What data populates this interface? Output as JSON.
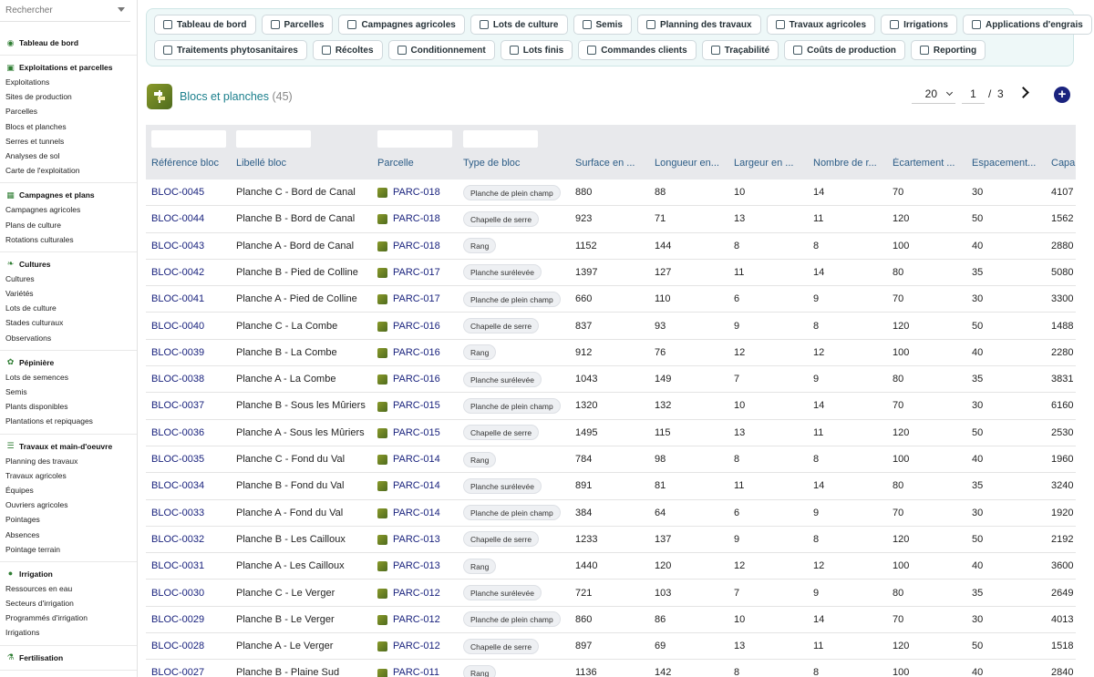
{
  "search": {
    "placeholder": "Rechercher"
  },
  "sidebar": {
    "sections": [
      {
        "title": "Tableau de bord",
        "icon": "dashboard-icon",
        "items": []
      },
      {
        "title": "Exploitations et parcelles",
        "icon": "field-icon",
        "items": [
          "Exploitations",
          "Sites de production",
          "Parcelles",
          "Blocs et planches",
          "Serres et tunnels",
          "Analyses de sol",
          "Carte de l'exploitation"
        ]
      },
      {
        "title": "Campagnes et plans",
        "icon": "calendar-icon",
        "items": [
          "Campagnes agricoles",
          "Plans de culture",
          "Rotations culturales"
        ]
      },
      {
        "title": "Cultures",
        "icon": "leaf-icon",
        "items": [
          "Cultures",
          "Variétés",
          "Lots de culture",
          "Stades culturaux",
          "Observations"
        ]
      },
      {
        "title": "Pépinière",
        "icon": "seedling-icon",
        "items": [
          "Lots de semences",
          "Semis",
          "Plants disponibles",
          "Plantations et repiquages"
        ]
      },
      {
        "title": "Travaux et main-d'oeuvre",
        "icon": "list-icon",
        "items": [
          "Planning des travaux",
          "Travaux agricoles",
          "Équipes",
          "Ouvriers agricoles",
          "Pointages",
          "Absences",
          "Pointage terrain"
        ]
      },
      {
        "title": "Irrigation",
        "icon": "drop-icon",
        "items": [
          "Ressources en eau",
          "Secteurs d'irrigation",
          "Programmés d'irrigation",
          "Irrigations"
        ]
      },
      {
        "title": "Fertilisation",
        "icon": "fertilizer-icon",
        "items": []
      }
    ]
  },
  "toolbar": {
    "row1": [
      {
        "label": "Tableau de bord",
        "icon": "gauge-icon"
      },
      {
        "label": "Parcelles",
        "icon": "frame-icon"
      },
      {
        "label": "Campagnes agricoles",
        "icon": "calendar-icon"
      },
      {
        "label": "Lots de culture",
        "icon": "sprout-icon"
      },
      {
        "label": "Semis",
        "icon": "seed-icon"
      },
      {
        "label": "Planning des travaux",
        "icon": "schedule-icon"
      },
      {
        "label": "Travaux agricoles",
        "icon": "list-icon"
      },
      {
        "label": "Irrigations",
        "icon": "drop-icon"
      },
      {
        "label": "Applications d'engrais",
        "icon": "fertilizer-icon"
      }
    ],
    "row2": [
      {
        "label": "Traitements phytosanitaires",
        "icon": "spray-icon"
      },
      {
        "label": "Récoltes",
        "icon": "basket-icon"
      },
      {
        "label": "Conditionnement",
        "icon": "box-icon"
      },
      {
        "label": "Lots finis",
        "icon": "pallet-icon"
      },
      {
        "label": "Commandes clients",
        "icon": "order-icon"
      },
      {
        "label": "Traçabilité",
        "icon": "barcode-icon"
      },
      {
        "label": "Coûts de production",
        "icon": "money-icon"
      },
      {
        "label": "Reporting",
        "icon": "chart-icon"
      }
    ]
  },
  "page": {
    "title": "Blocs et planches",
    "count": "(45)"
  },
  "pager": {
    "page_size": "20",
    "current": "1",
    "separator": "/",
    "total": "3"
  },
  "table": {
    "columns": [
      "Référence bloc",
      "Libellé bloc",
      "Parcelle",
      "Type de bloc",
      "Surface en ...",
      "Longueur en...",
      "Largeur en ...",
      "Nombre de r...",
      "Écartement ...",
      "Espacement...",
      "Capa"
    ],
    "rows": [
      [
        "BLOC-0045",
        "Planche C - Bord de Canal",
        "PARC-018",
        "Planche de plein champ",
        "880",
        "88",
        "10",
        "14",
        "70",
        "30",
        "4107"
      ],
      [
        "BLOC-0044",
        "Planche B - Bord de Canal",
        "PARC-018",
        "Chapelle de serre",
        "923",
        "71",
        "13",
        "11",
        "120",
        "50",
        "1562"
      ],
      [
        "BLOC-0043",
        "Planche A - Bord de Canal",
        "PARC-018",
        "Rang",
        "1152",
        "144",
        "8",
        "8",
        "100",
        "40",
        "2880"
      ],
      [
        "BLOC-0042",
        "Planche B - Pied de Colline",
        "PARC-017",
        "Planche surélevée",
        "1397",
        "127",
        "11",
        "14",
        "80",
        "35",
        "5080"
      ],
      [
        "BLOC-0041",
        "Planche A - Pied de Colline",
        "PARC-017",
        "Planche de plein champ",
        "660",
        "110",
        "6",
        "9",
        "70",
        "30",
        "3300"
      ],
      [
        "BLOC-0040",
        "Planche C - La Combe",
        "PARC-016",
        "Chapelle de serre",
        "837",
        "93",
        "9",
        "8",
        "120",
        "50",
        "1488"
      ],
      [
        "BLOC-0039",
        "Planche B - La Combe",
        "PARC-016",
        "Rang",
        "912",
        "76",
        "12",
        "12",
        "100",
        "40",
        "2280"
      ],
      [
        "BLOC-0038",
        "Planche A - La Combe",
        "PARC-016",
        "Planche surélevée",
        "1043",
        "149",
        "7",
        "9",
        "80",
        "35",
        "3831"
      ],
      [
        "BLOC-0037",
        "Planche B - Sous les Mûriers",
        "PARC-015",
        "Planche de plein champ",
        "1320",
        "132",
        "10",
        "14",
        "70",
        "30",
        "6160"
      ],
      [
        "BLOC-0036",
        "Planche A - Sous les Mûriers",
        "PARC-015",
        "Chapelle de serre",
        "1495",
        "115",
        "13",
        "11",
        "120",
        "50",
        "2530"
      ],
      [
        "BLOC-0035",
        "Planche C - Fond du Val",
        "PARC-014",
        "Rang",
        "784",
        "98",
        "8",
        "8",
        "100",
        "40",
        "1960"
      ],
      [
        "BLOC-0034",
        "Planche B - Fond du Val",
        "PARC-014",
        "Planche surélevée",
        "891",
        "81",
        "11",
        "14",
        "80",
        "35",
        "3240"
      ],
      [
        "BLOC-0033",
        "Planche A - Fond du Val",
        "PARC-014",
        "Planche de plein champ",
        "384",
        "64",
        "6",
        "9",
        "70",
        "30",
        "1920"
      ],
      [
        "BLOC-0032",
        "Planche B - Les Cailloux",
        "PARC-013",
        "Chapelle de serre",
        "1233",
        "137",
        "9",
        "8",
        "120",
        "50",
        "2192"
      ],
      [
        "BLOC-0031",
        "Planche A - Les Cailloux",
        "PARC-013",
        "Rang",
        "1440",
        "120",
        "12",
        "12",
        "100",
        "40",
        "3600"
      ],
      [
        "BLOC-0030",
        "Planche C - Le Verger",
        "PARC-012",
        "Planche surélevée",
        "721",
        "103",
        "7",
        "9",
        "80",
        "35",
        "2649"
      ],
      [
        "BLOC-0029",
        "Planche B - Le Verger",
        "PARC-012",
        "Planche de plein champ",
        "860",
        "86",
        "10",
        "14",
        "70",
        "30",
        "4013"
      ],
      [
        "BLOC-0028",
        "Planche A - Le Verger",
        "PARC-012",
        "Chapelle de serre",
        "897",
        "69",
        "13",
        "11",
        "120",
        "50",
        "1518"
      ],
      [
        "BLOC-0027",
        "Planche B - Plaine Sud",
        "PARC-011",
        "Rang",
        "1136",
        "142",
        "8",
        "8",
        "100",
        "40",
        "2840"
      ]
    ]
  }
}
